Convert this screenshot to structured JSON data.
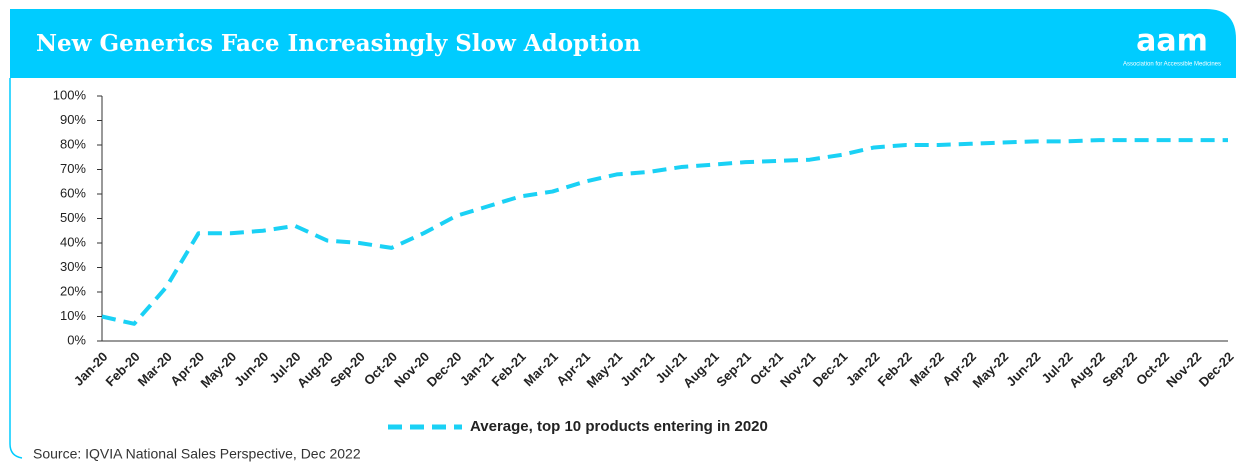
{
  "logo": {
    "text": "aam",
    "tagline": "Association for Accessible Medicines"
  },
  "chart_data": {
    "type": "line",
    "title": "New Generics Face Increasingly Slow Adoption",
    "source": "Source: IQVIA National Sales Perspective, Dec 2022",
    "categories": [
      "Jan-20",
      "Feb-20",
      "Mar-20",
      "Apr-20",
      "May-20",
      "Jun-20",
      "Jul-20",
      "Aug-20",
      "Sep-20",
      "Oct-20",
      "Nov-20",
      "Dec-20",
      "Jan-21",
      "Feb-21",
      "Mar-21",
      "Apr-21",
      "May-21",
      "Jun-21",
      "Jul-21",
      "Aug-21",
      "Sep-21",
      "Oct-21",
      "Nov-21",
      "Dec-21",
      "Jan-22",
      "Feb-22",
      "Mar-22",
      "Apr-22",
      "May-22",
      "Jun-22",
      "Jul-22",
      "Aug-22",
      "Sep-22",
      "Oct-22",
      "Nov-22",
      "Dec-22"
    ],
    "series": [
      {
        "name": "Average, top 10 products entering in 2020",
        "color": "#1ad1f5",
        "values": [
          10,
          7,
          22,
          44,
          44,
          45,
          47,
          41,
          40,
          38,
          44,
          51,
          55,
          59,
          61,
          65,
          68,
          69,
          71,
          72,
          73,
          73.5,
          74,
          76,
          79,
          80,
          80,
          80.5,
          81,
          81.5,
          81.5,
          82,
          82,
          82,
          82,
          82
        ]
      }
    ],
    "ylim": [
      0,
      100
    ],
    "yticks": [
      {
        "value": 0,
        "label": "0%"
      },
      {
        "value": 10,
        "label": "10%"
      },
      {
        "value": 20,
        "label": "20%"
      },
      {
        "value": 30,
        "label": "30%"
      },
      {
        "value": 40,
        "label": "40%"
      },
      {
        "value": 50,
        "label": "50%"
      },
      {
        "value": 60,
        "label": "60%"
      },
      {
        "value": 70,
        "label": "70%"
      },
      {
        "value": 80,
        "label": "80%"
      },
      {
        "value": 90,
        "label": "90%"
      },
      {
        "value": 100,
        "label": "100%"
      }
    ],
    "grid": false,
    "legend": "bottom"
  }
}
